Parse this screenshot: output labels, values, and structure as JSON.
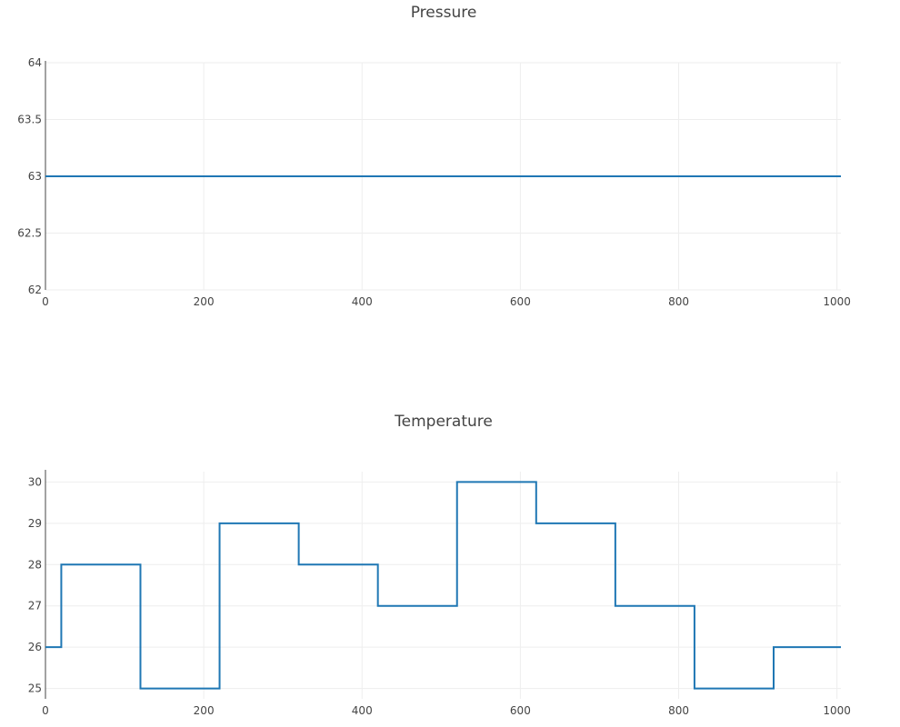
{
  "chart_data": [
    {
      "type": "line",
      "title": "Pressure",
      "xlabel": "",
      "ylabel": "",
      "xlim": [
        0,
        1005
      ],
      "ylim": [
        62,
        64
      ],
      "x_ticks": [
        0,
        200,
        400,
        600,
        800,
        1000
      ],
      "y_ticks": [
        "62",
        "62.5",
        "63",
        "63.5",
        "64"
      ],
      "grid": true,
      "line_shape": "step",
      "series": [
        {
          "color": "#1f77b4",
          "x": [
            0,
            1005
          ],
          "values": [
            63,
            63
          ]
        }
      ]
    },
    {
      "type": "line",
      "title": "Temperature",
      "xlabel": "",
      "ylabel": "",
      "xlim": [
        0,
        1005
      ],
      "ylim": [
        24.75,
        30.25
      ],
      "x_ticks": [
        0,
        200,
        400,
        600,
        800,
        1000
      ],
      "y_ticks": [
        "25",
        "26",
        "27",
        "28",
        "29",
        "30"
      ],
      "grid": true,
      "line_shape": "step",
      "series": [
        {
          "color": "#1f77b4",
          "x": [
            0,
            20,
            120,
            220,
            320,
            420,
            520,
            620,
            720,
            820,
            920,
            1005
          ],
          "values": [
            26,
            28,
            25,
            29,
            28,
            27,
            30,
            29,
            27,
            25,
            26,
            26
          ]
        }
      ]
    }
  ]
}
